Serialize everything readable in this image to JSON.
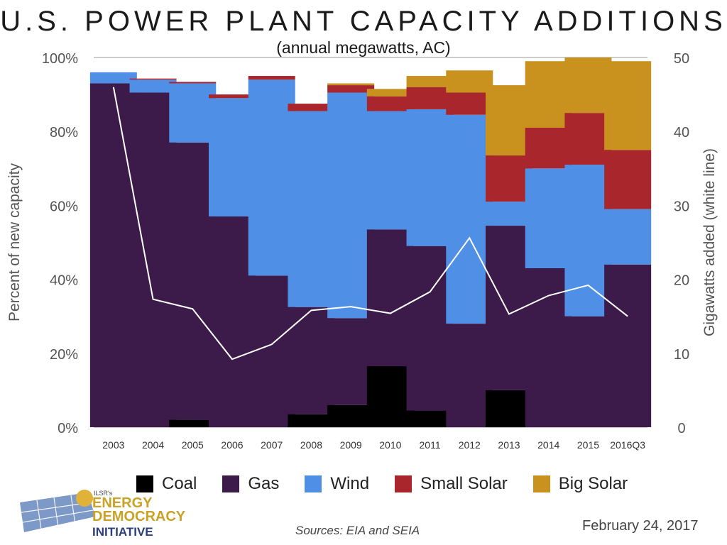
{
  "title": "U.S. POWER PLANT CAPACITY ADDITIONS",
  "subtitle": "(annual megawatts, AC)",
  "sources": "Sources: EIA and SEIA",
  "date": "February 24, 2017",
  "logo": {
    "small_text": "ILSR's",
    "line1": "ENERGY",
    "line2": "DEMOCRACY",
    "line3": "INITIATIVE"
  },
  "chart_data": {
    "type": "bar",
    "stacked": true,
    "categories": [
      "2003",
      "2004",
      "2005",
      "2006",
      "2007",
      "2008",
      "2009",
      "2010",
      "2011",
      "2012",
      "2013",
      "2014",
      "2015",
      "2016Q3"
    ],
    "ylabel": "Percent of new capacity",
    "y2label": "Gigawatts added (white line)",
    "ylim": [
      0,
      100
    ],
    "y2lim": [
      0,
      50
    ],
    "yticks": [
      "0%",
      "20%",
      "40%",
      "60%",
      "80%",
      "100%"
    ],
    "y2ticks": [
      "0",
      "10",
      "20",
      "30",
      "40",
      "50"
    ],
    "grid": true,
    "legend_position": "bottom",
    "series": [
      {
        "name": "Coal",
        "color": "#000000",
        "values": [
          0,
          0,
          2,
          0,
          0,
          3.5,
          6,
          16.5,
          4.5,
          0,
          10,
          0,
          0,
          0
        ]
      },
      {
        "name": "Gas",
        "color": "#3c1a4a",
        "values": [
          93,
          90.5,
          75,
          57,
          41,
          29,
          23.5,
          37,
          44.5,
          28,
          44.5,
          43,
          30,
          44
        ]
      },
      {
        "name": "Wind",
        "color": "#4f8fe6",
        "values": [
          3,
          3.5,
          16,
          32,
          53,
          53,
          61,
          32,
          37,
          56.5,
          6.5,
          27,
          41,
          15
        ]
      },
      {
        "name": "Small Solar",
        "color": "#a8262c",
        "values": [
          0,
          0.3,
          0.4,
          1,
          1,
          2,
          2,
          4,
          6,
          6,
          12.5,
          11,
          14,
          16
        ]
      },
      {
        "name": "Big Solar",
        "color": "#c9921f",
        "values": [
          0,
          0,
          0,
          0,
          0,
          0,
          0.5,
          2,
          3,
          6,
          19,
          18,
          15,
          24
        ]
      }
    ],
    "line": {
      "name": "Gigawatts added",
      "color": "#ffffff",
      "values": [
        46,
        17.3,
        16,
        9.2,
        11.2,
        15.8,
        16.3,
        15.4,
        18.3,
        25.6,
        15.3,
        17.8,
        19.2,
        15
      ]
    }
  }
}
